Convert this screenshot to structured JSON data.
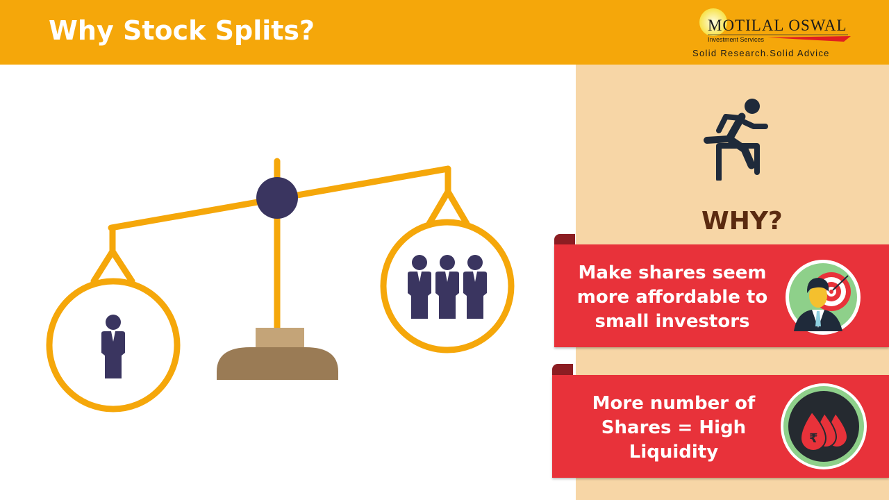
{
  "header": {
    "title": "Why Stock Splits?"
  },
  "logo": {
    "name": "MOTILAL OSWAL",
    "subtitle": "Investment Services",
    "tagline": "Solid Research.Solid Advice"
  },
  "panel": {
    "heading": "WHY?",
    "cards": [
      {
        "text": "Make shares seem more affordable to small investors",
        "icon": "businessman-target-icon"
      },
      {
        "text": "More number of Shares = High Liquidity",
        "icon": "rupee-drops-icon"
      }
    ]
  },
  "colors": {
    "header": "#F5A70A",
    "panel": "#F7D6A6",
    "card": "#E8323A",
    "figure": "#3A3560"
  }
}
